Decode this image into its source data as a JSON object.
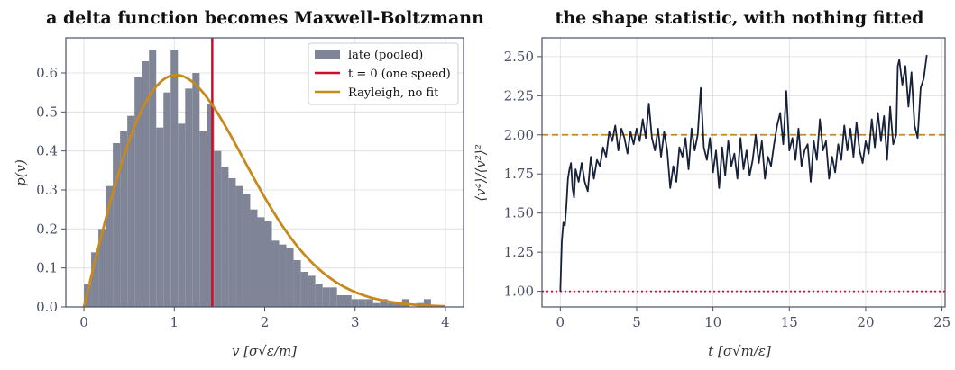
{
  "chart_data": [
    {
      "type": "bar",
      "title": "a delta function becomes Maxwell-Boltzmann",
      "xlabel": "v [σ√ε/m]",
      "ylabel": "p(v)",
      "xlim": [
        -0.2,
        4.2
      ],
      "ylim": [
        0,
        0.69
      ],
      "xticks": [
        0,
        1,
        2,
        3,
        4
      ],
      "yticks": [
        0.0,
        0.1,
        0.2,
        0.3,
        0.4,
        0.5,
        0.6
      ],
      "grid": true,
      "legend_placement": "top-right",
      "colors": {
        "hist": "#7f8596",
        "delta": "#c8102e",
        "rayleigh": "#c8891c"
      },
      "histogram": {
        "name": "late (pooled)",
        "bin_width": 0.08,
        "bin_start": 0.0,
        "values": [
          0.06,
          0.14,
          0.2,
          0.31,
          0.42,
          0.45,
          0.49,
          0.59,
          0.63,
          0.66,
          0.46,
          0.55,
          0.66,
          0.47,
          0.56,
          0.6,
          0.45,
          0.52,
          0.4,
          0.36,
          0.33,
          0.31,
          0.29,
          0.25,
          0.23,
          0.22,
          0.17,
          0.16,
          0.15,
          0.12,
          0.09,
          0.08,
          0.06,
          0.05,
          0.05,
          0.03,
          0.03,
          0.02,
          0.02,
          0.02,
          0.01,
          0.02,
          0.01,
          0.01,
          0.02,
          0.0,
          0.01,
          0.02,
          0.0,
          0.0
        ]
      },
      "delta_line": {
        "name": "t = 0 (one speed)",
        "x": 1.42
      },
      "rayleigh": {
        "name": "Rayleigh, no fit",
        "sigma": 1.02,
        "x_max": 4.0
      }
    },
    {
      "type": "line",
      "title": "the shape statistic, with nothing fitted",
      "xlabel": "t [σ√m/ε]",
      "ylabel": "⟨v⁴⟩/⟨v²⟩²",
      "xlim": [
        -1.2,
        25.2
      ],
      "ylim": [
        0.9,
        2.62
      ],
      "xticks": [
        0,
        5,
        10,
        15,
        20,
        25
      ],
      "yticks": [
        1.0,
        1.25,
        1.5,
        1.75,
        2.0,
        2.25,
        2.5
      ],
      "grid": true,
      "colors": {
        "series": "#17213a",
        "ref2": "#c8891c",
        "ref1": "#c8102e"
      },
      "reference_lines": [
        {
          "y": 2.0,
          "style": "dashed"
        },
        {
          "y": 1.0,
          "style": "dotted"
        }
      ],
      "series": [
        {
          "x": [
            0.0,
            0.1,
            0.2,
            0.3,
            0.4,
            0.5,
            0.6,
            0.7,
            0.8,
            0.9,
            1.0,
            1.2,
            1.4,
            1.6,
            1.8,
            2.0,
            2.2,
            2.4,
            2.6,
            2.8,
            3.0,
            3.2,
            3.4,
            3.6,
            3.8,
            4.0,
            4.2,
            4.4,
            4.6,
            4.8,
            5.0,
            5.2,
            5.4,
            5.6,
            5.8,
            6.0,
            6.2,
            6.4,
            6.6,
            6.8,
            7.0,
            7.2,
            7.4,
            7.6,
            7.8,
            8.0,
            8.2,
            8.4,
            8.6,
            8.8,
            9.0,
            9.2,
            9.4,
            9.6,
            9.8,
            10.0,
            10.2,
            10.4,
            10.6,
            10.8,
            11.0,
            11.2,
            11.4,
            11.6,
            11.8,
            12.0,
            12.2,
            12.4,
            12.6,
            12.8,
            13.0,
            13.2,
            13.4,
            13.6,
            13.8,
            14.0,
            14.2,
            14.4,
            14.6,
            14.8,
            15.0,
            15.2,
            15.4,
            15.6,
            15.8,
            16.0,
            16.2,
            16.4,
            16.6,
            16.8,
            17.0,
            17.2,
            17.4,
            17.6,
            17.8,
            18.0,
            18.2,
            18.4,
            18.6,
            18.8,
            19.0,
            19.2,
            19.4,
            19.6,
            19.8,
            20.0,
            20.2,
            20.4,
            20.6,
            20.8,
            21.0,
            21.2,
            21.4,
            21.6,
            21.8,
            22.0,
            22.1,
            22.2,
            22.4,
            22.6,
            22.8,
            23.0,
            23.2,
            23.4,
            23.6,
            23.8,
            24.0
          ],
          "values": [
            1.0,
            1.32,
            1.44,
            1.42,
            1.55,
            1.72,
            1.78,
            1.82,
            1.66,
            1.6,
            1.78,
            1.7,
            1.82,
            1.7,
            1.64,
            1.86,
            1.72,
            1.84,
            1.8,
            1.92,
            1.86,
            2.02,
            1.96,
            2.06,
            1.9,
            2.04,
            1.98,
            1.88,
            2.02,
            1.94,
            2.04,
            1.96,
            2.1,
            1.98,
            2.2,
            1.98,
            1.9,
            2.04,
            1.86,
            2.02,
            1.9,
            1.66,
            1.8,
            1.7,
            1.92,
            1.86,
            1.98,
            1.78,
            2.04,
            1.9,
            2.0,
            2.3,
            1.92,
            1.84,
            1.98,
            1.76,
            1.9,
            1.66,
            1.92,
            1.74,
            1.96,
            1.8,
            1.88,
            1.72,
            1.98,
            1.78,
            1.9,
            1.74,
            1.84,
            2.0,
            1.82,
            1.96,
            1.72,
            1.86,
            1.8,
            1.94,
            2.06,
            2.14,
            1.94,
            2.28,
            1.9,
            1.98,
            1.84,
            2.04,
            1.8,
            1.9,
            1.94,
            1.7,
            1.96,
            1.84,
            2.1,
            1.9,
            1.96,
            1.72,
            1.86,
            1.76,
            1.94,
            1.84,
            2.06,
            1.9,
            2.04,
            1.86,
            2.08,
            1.9,
            1.82,
            1.96,
            1.88,
            2.1,
            1.92,
            2.14,
            1.96,
            2.12,
            1.84,
            2.18,
            1.94,
            2.0,
            2.44,
            2.48,
            2.32,
            2.44,
            2.18,
            2.4,
            2.06,
            1.98,
            2.3,
            2.36,
            2.51
          ]
        }
      ]
    }
  ]
}
